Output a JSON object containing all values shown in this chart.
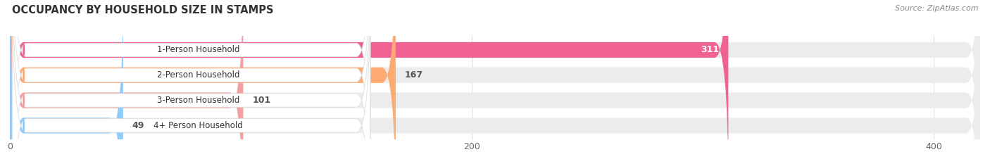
{
  "title": "OCCUPANCY BY HOUSEHOLD SIZE IN STAMPS",
  "source": "Source: ZipAtlas.com",
  "categories": [
    "1-Person Household",
    "2-Person Household",
    "3-Person Household",
    "4+ Person Household"
  ],
  "values": [
    311,
    167,
    101,
    49
  ],
  "bar_colors": [
    "#F06292",
    "#FFAA70",
    "#F4A0A0",
    "#90CAF9"
  ],
  "dot_colors": [
    "#F06292",
    "#FFAA70",
    "#F4A0A0",
    "#90CAF9"
  ],
  "bar_bg_color": "#ECECEC",
  "xlim_max": 420,
  "xticks": [
    0,
    200,
    400
  ],
  "figsize": [
    14.06,
    2.33
  ],
  "dpi": 100,
  "title_fontsize": 10.5,
  "background_color": "#FFFFFF",
  "grid_color": "#DDDDDD",
  "label_fontsize": 8.5,
  "value_fontsize": 9
}
